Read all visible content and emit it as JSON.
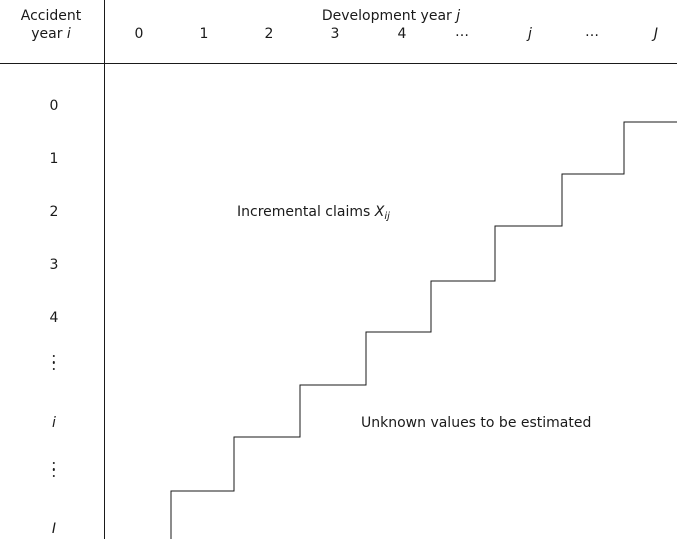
{
  "header": {
    "accident_label_1": "Accident",
    "accident_label_2_text": "year",
    "accident_label_2_var": "i",
    "development_label_text": "Development year",
    "development_label_var": "j"
  },
  "columns": [
    "0",
    "1",
    "2",
    "3",
    "4",
    "…",
    "j",
    "…",
    "J"
  ],
  "rows": [
    "0",
    "1",
    "2",
    "3",
    "4",
    "⋮",
    "i",
    "⋮",
    "I"
  ],
  "regions": {
    "upper_text": "Incremental claims",
    "upper_var": "X",
    "upper_sub": "ij",
    "lower_text": "Unknown values to be estimated"
  }
}
